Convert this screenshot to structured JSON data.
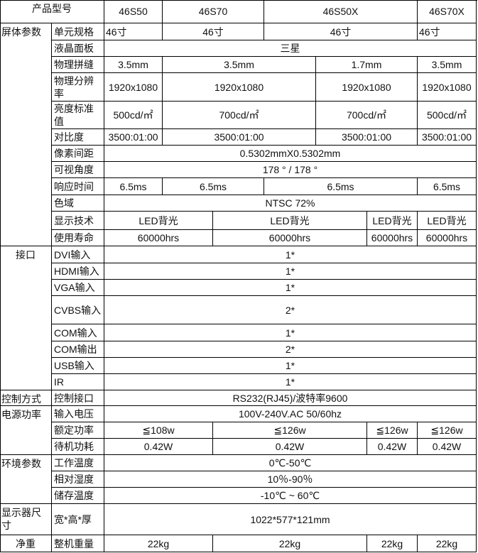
{
  "header": {
    "label": "产品型号",
    "models": [
      "46S50",
      "46S70",
      "46S50X",
      "46S70X"
    ]
  },
  "groups": [
    {
      "label": "屏体参数",
      "rows": [
        {
          "label": "单元规格",
          "values": [
            "46寸",
            "46寸",
            "46寸",
            "46寸"
          ]
        },
        {
          "label": "液晶面板",
          "values": [
            "三星"
          ]
        },
        {
          "label": "物理拼缝",
          "values": [
            "3.5mm",
            "3.5mm",
            "1.7mm",
            "3.5mm"
          ]
        },
        {
          "label": "物理分辨率",
          "values": [
            "1920x1080",
            "1920x1080",
            "1920x1080",
            "1920x1080"
          ]
        },
        {
          "label": "亮度标准值",
          "values": [
            "500cd/㎡",
            "700cd/㎡",
            "700cd/㎡",
            "500cd/㎡"
          ]
        },
        {
          "label": "对比度",
          "values": [
            "3500:01:00",
            "3500:01:00",
            "3500:01:00",
            "3500:01:00"
          ]
        },
        {
          "label": "像素间距",
          "values": [
            "0.5302mmX0.5302mm"
          ]
        },
        {
          "label": "可视角度",
          "values": [
            "178 ° / 178 °"
          ]
        },
        {
          "label": "响应时间",
          "values": [
            "6.5ms",
            "6.5ms",
            "6.5ms",
            "6.5ms"
          ]
        },
        {
          "label": "色域",
          "values": [
            "NTSC 72%"
          ]
        },
        {
          "label": "显示技术",
          "values": [
            "LED背光",
            "LED背光",
            "LED背光",
            "LED背光"
          ]
        },
        {
          "label": "使用寿命",
          "values": [
            "60000hrs",
            "60000hrs",
            "60000hrs",
            "60000hrs"
          ]
        }
      ]
    },
    {
      "label": "接口",
      "rows": [
        {
          "label": "DVI输入",
          "values": [
            "1*"
          ]
        },
        {
          "label": "HDMI输入",
          "values": [
            "1*"
          ]
        },
        {
          "label": "VGA输入",
          "values": [
            "1*"
          ]
        },
        {
          "label": "CVBS输入",
          "values": [
            "2*"
          ]
        },
        {
          "label": "COM输入",
          "values": [
            "1*"
          ]
        },
        {
          "label": "COM输出",
          "values": [
            "2*"
          ]
        },
        {
          "label": "USB输入",
          "values": [
            "1*"
          ]
        },
        {
          "label": "IR",
          "values": [
            "1*"
          ]
        }
      ]
    },
    {
      "label": "控制方式",
      "rows": [
        {
          "label": "控制接口",
          "values": [
            "RS232(RJ45)/波特率9600"
          ]
        }
      ]
    },
    {
      "label": "电源功率",
      "rows": [
        {
          "label": "输入电压",
          "values": [
            "100V-240V.AC 50/60hz"
          ]
        },
        {
          "label": "额定功率",
          "values": [
            "≦108w",
            "≦126w",
            "≦126w",
            "≦126w"
          ]
        },
        {
          "label": "待机功耗",
          "values": [
            "0.42W",
            "0.42W",
            "0.42W",
            "0.42W"
          ]
        }
      ]
    },
    {
      "label": "环境参数",
      "rows": [
        {
          "label": "工作温度",
          "values": [
            "0℃-50℃"
          ]
        },
        {
          "label": "相对湿度",
          "values": [
            "10％-90％"
          ]
        },
        {
          "label": "储存温度",
          "values": [
            "-10℃ ~ 60℃"
          ]
        }
      ]
    },
    {
      "label": "显示器尺寸",
      "rows": [
        {
          "label": "宽*高*厚",
          "values": [
            "1022*577*121mm"
          ]
        }
      ]
    },
    {
      "label": "净重",
      "rows": [
        {
          "label": "整机重量",
          "values": [
            "22kg",
            "22kg",
            "22kg",
            "22kg"
          ]
        }
      ]
    }
  ]
}
